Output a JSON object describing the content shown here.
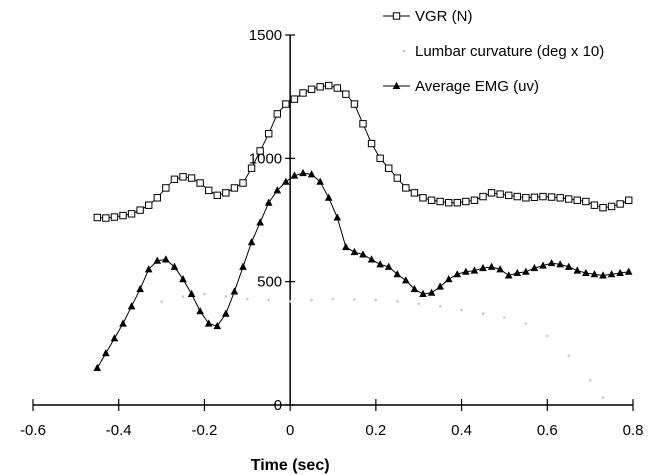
{
  "chart_data": {
    "type": "line",
    "title": "",
    "xlabel": "Time (sec)",
    "ylabel": "",
    "xlim": [
      -0.6,
      0.8
    ],
    "ylim": [
      0,
      1500
    ],
    "x_ticks": [
      "-0.6",
      "-0.4",
      "-0.2",
      "0",
      "0.2",
      "0.4",
      "0.6",
      "0.8"
    ],
    "y_ticks": [
      "0",
      "500",
      "1000",
      "1500"
    ],
    "grid": false,
    "legend_position": "top-right",
    "series": [
      {
        "name": "VGR (N)",
        "marker": "open-square",
        "color": "#000000",
        "x": [
          -0.45,
          -0.43,
          -0.41,
          -0.39,
          -0.37,
          -0.35,
          -0.33,
          -0.31,
          -0.29,
          -0.27,
          -0.25,
          -0.23,
          -0.21,
          -0.19,
          -0.17,
          -0.15,
          -0.13,
          -0.11,
          -0.09,
          -0.07,
          -0.05,
          -0.03,
          -0.01,
          0.01,
          0.03,
          0.05,
          0.07,
          0.09,
          0.11,
          0.13,
          0.15,
          0.17,
          0.19,
          0.21,
          0.23,
          0.25,
          0.27,
          0.29,
          0.31,
          0.33,
          0.35,
          0.37,
          0.39,
          0.41,
          0.43,
          0.45,
          0.47,
          0.49,
          0.51,
          0.53,
          0.55,
          0.57,
          0.59,
          0.61,
          0.63,
          0.65,
          0.67,
          0.69,
          0.71,
          0.73,
          0.75,
          0.77,
          0.79
        ],
        "values": [
          760,
          758,
          762,
          768,
          775,
          790,
          810,
          840,
          880,
          915,
          925,
          920,
          900,
          870,
          850,
          860,
          880,
          900,
          960,
          1030,
          1100,
          1180,
          1220,
          1240,
          1265,
          1280,
          1290,
          1295,
          1285,
          1260,
          1220,
          1140,
          1060,
          1000,
          960,
          920,
          880,
          860,
          840,
          830,
          825,
          820,
          820,
          825,
          830,
          845,
          860,
          855,
          850,
          845,
          840,
          842,
          845,
          843,
          840,
          835,
          830,
          825,
          810,
          800,
          805,
          815,
          830
        ]
      },
      {
        "name": "Lumbar curvature (deg x 10)",
        "marker": "dot",
        "color": "#c8c8c8",
        "x": [
          -0.3,
          -0.25,
          -0.2,
          -0.15,
          -0.1,
          -0.05,
          0.0,
          0.05,
          0.1,
          0.15,
          0.2,
          0.25,
          0.3,
          0.35,
          0.4,
          0.45,
          0.5,
          0.55,
          0.6,
          0.65,
          0.7,
          0.73
        ],
        "values": [
          420,
          440,
          450,
          440,
          430,
          425,
          420,
          425,
          430,
          428,
          425,
          420,
          410,
          400,
          385,
          370,
          355,
          330,
          280,
          200,
          100,
          30
        ]
      },
      {
        "name": "Average EMG (uv)",
        "marker": "filled-triangle",
        "color": "#000000",
        "x": [
          -0.45,
          -0.43,
          -0.41,
          -0.39,
          -0.37,
          -0.35,
          -0.33,
          -0.31,
          -0.29,
          -0.27,
          -0.25,
          -0.23,
          -0.21,
          -0.19,
          -0.17,
          -0.15,
          -0.13,
          -0.11,
          -0.09,
          -0.07,
          -0.05,
          -0.03,
          -0.01,
          0.01,
          0.03,
          0.05,
          0.07,
          0.09,
          0.11,
          0.13,
          0.15,
          0.17,
          0.19,
          0.21,
          0.23,
          0.25,
          0.27,
          0.29,
          0.31,
          0.33,
          0.35,
          0.37,
          0.39,
          0.41,
          0.43,
          0.45,
          0.47,
          0.49,
          0.51,
          0.53,
          0.55,
          0.57,
          0.59,
          0.61,
          0.63,
          0.65,
          0.67,
          0.69,
          0.71,
          0.73,
          0.75,
          0.77,
          0.79
        ],
        "values": [
          150,
          210,
          270,
          330,
          400,
          470,
          550,
          585,
          590,
          560,
          510,
          450,
          380,
          330,
          320,
          370,
          460,
          560,
          660,
          740,
          820,
          870,
          905,
          930,
          940,
          935,
          905,
          840,
          760,
          640,
          620,
          610,
          590,
          570,
          560,
          530,
          505,
          470,
          450,
          455,
          480,
          510,
          530,
          540,
          545,
          555,
          560,
          550,
          525,
          535,
          540,
          555,
          565,
          575,
          570,
          560,
          545,
          535,
          530,
          525,
          530,
          535,
          540
        ]
      }
    ]
  }
}
